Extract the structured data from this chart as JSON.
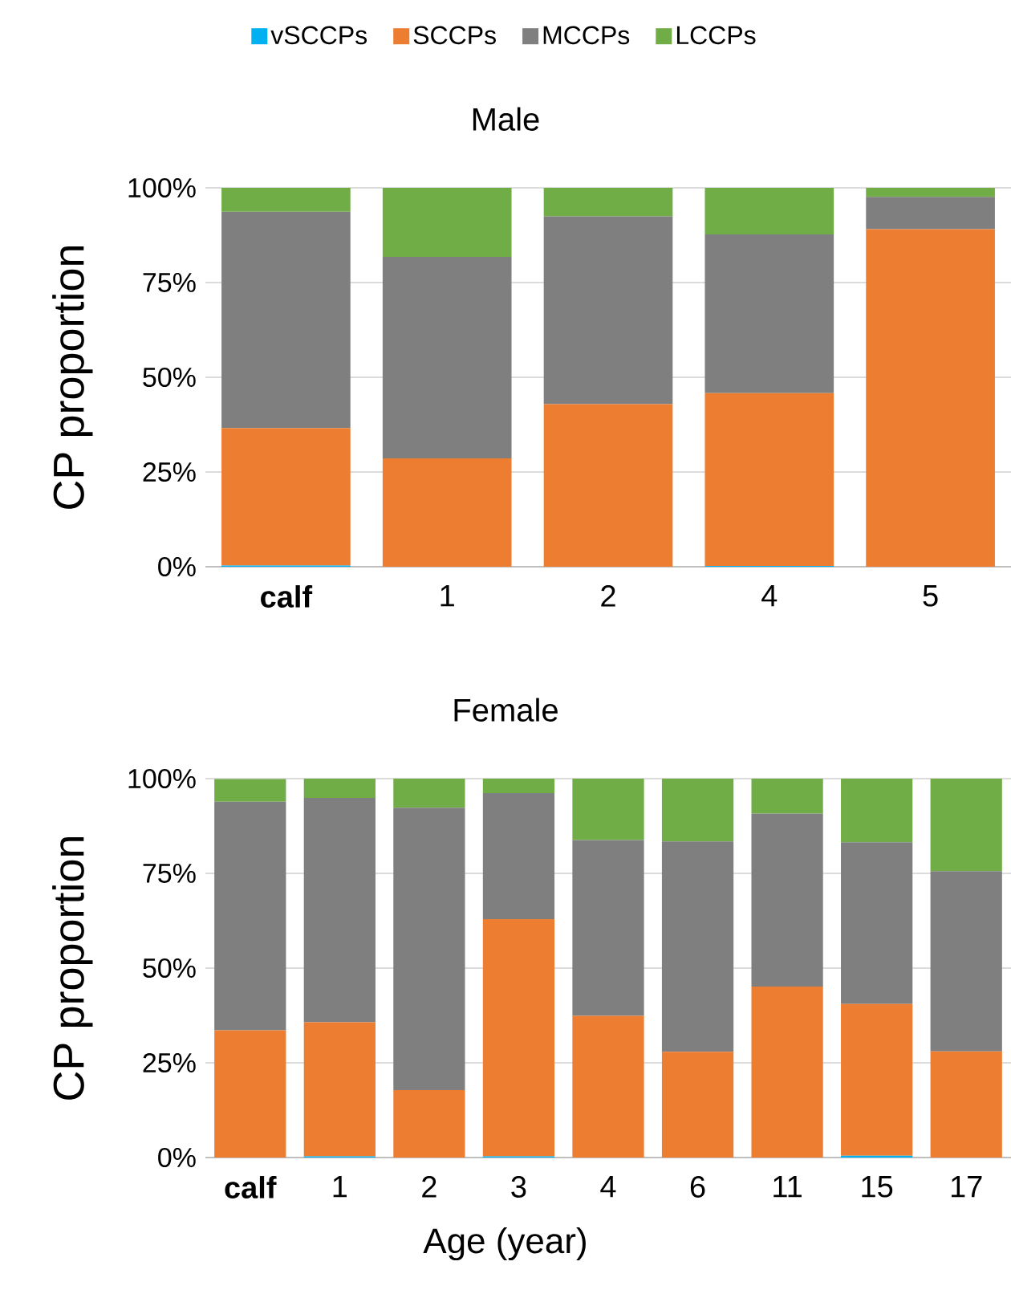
{
  "chart_data": [
    {
      "type": "bar",
      "title": "Male",
      "ylabel": "CP proportion",
      "stacked": true,
      "legend": "top",
      "grid": "y",
      "categories": [
        "**calf**",
        "1",
        "2",
        "4",
        "5"
      ],
      "ylim": [
        0,
        100
      ],
      "yticks": [
        {
          "value": 0,
          "label": "0%"
        },
        {
          "value": 25,
          "label": "25%"
        },
        {
          "value": 50,
          "label": "50%"
        },
        {
          "value": 75,
          "label": "75%"
        },
        {
          "value": 100,
          "label": "100%"
        }
      ],
      "series": [
        {
          "name": "vSCCPs",
          "color": "#00b0f0",
          "values": [
            0.3,
            0,
            0,
            0.2,
            0
          ]
        },
        {
          "name": "SCCPs",
          "color": "#ed7d31",
          "values": [
            36.3,
            28.6,
            42.9,
            45.6,
            89.1
          ]
        },
        {
          "name": "MCCPs",
          "color": "#7f7f7f",
          "values": [
            57.1,
            53.2,
            49.6,
            41.9,
            8.5
          ]
        },
        {
          "name": "LCCPs",
          "color": "#70ad47",
          "values": [
            6.3,
            18.2,
            7.5,
            12.3,
            2.4
          ]
        }
      ]
    },
    {
      "type": "bar",
      "title": "Female",
      "ylabel": "CP proportion",
      "xlabel": "Age (year)",
      "stacked": true,
      "grid": "y",
      "categories": [
        "**calf**",
        "1",
        "2",
        "3",
        "4",
        "6",
        "11",
        "15",
        "17"
      ],
      "ylim": [
        0,
        100
      ],
      "yticks": [
        {
          "value": 0,
          "label": "0%"
        },
        {
          "value": 25,
          "label": "25%"
        },
        {
          "value": 50,
          "label": "50%"
        },
        {
          "value": 75,
          "label": "75%"
        },
        {
          "value": 100,
          "label": "100%"
        }
      ],
      "series": [
        {
          "color": "#00b0f0",
          "values": [
            0,
            0.3,
            0,
            0.3,
            0,
            0,
            0,
            0.5,
            0
          ]
        },
        {
          "color": "#ed7d31",
          "values": [
            33.6,
            35.4,
            17.8,
            62.6,
            37.4,
            27.9,
            45.1,
            40.0,
            28.0
          ]
        },
        {
          "color": "#7f7f7f",
          "values": [
            60.3,
            59.2,
            74.5,
            33.3,
            46.4,
            55.5,
            45.7,
            42.7,
            47.6
          ]
        },
        {
          "color": "#70ad47",
          "values": [
            6.0,
            5.1,
            7.7,
            3.8,
            16.2,
            16.6,
            9.2,
            16.8,
            24.4
          ]
        }
      ]
    }
  ]
}
